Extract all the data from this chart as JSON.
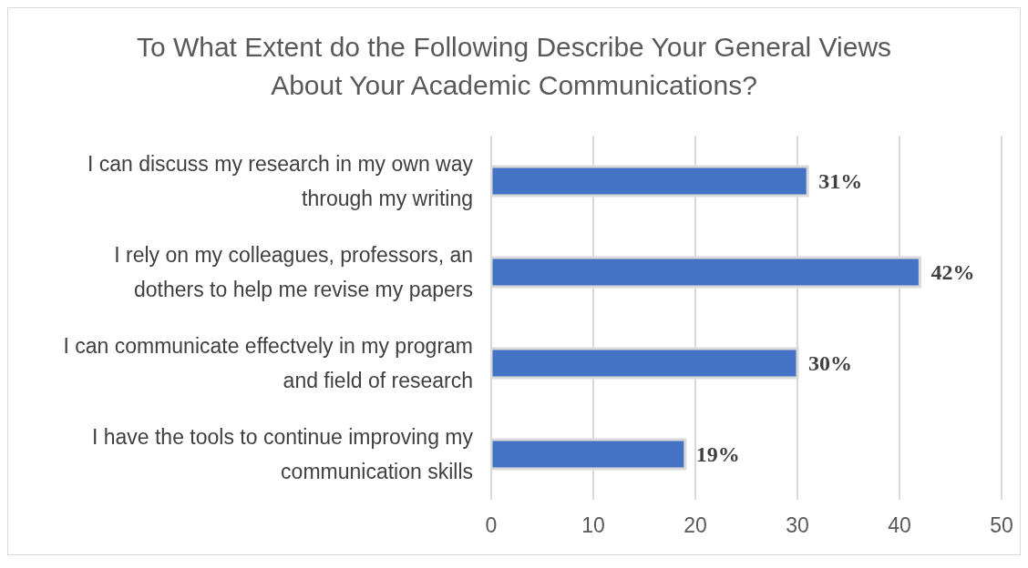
{
  "chart_data": {
    "type": "bar",
    "orientation": "horizontal",
    "title": "To What Extent do the Following Describe Your General Views About Your Academic Communications?",
    "categories": [
      "I can discuss my research in my own way through my writing",
      "I rely on my colleagues, professors, an dothers to help me revise my papers",
      "I can communicate effectvely in my program and field of research",
      "I have the tools to continue improving my communication skills"
    ],
    "values": [
      31,
      42,
      30,
      19
    ],
    "value_labels": [
      "31%",
      "42%",
      "30%",
      "19%"
    ],
    "color": "#4472c4",
    "xlim": [
      0,
      50
    ],
    "xticks": [
      0,
      10,
      20,
      30,
      40,
      50
    ],
    "grid": "x"
  }
}
